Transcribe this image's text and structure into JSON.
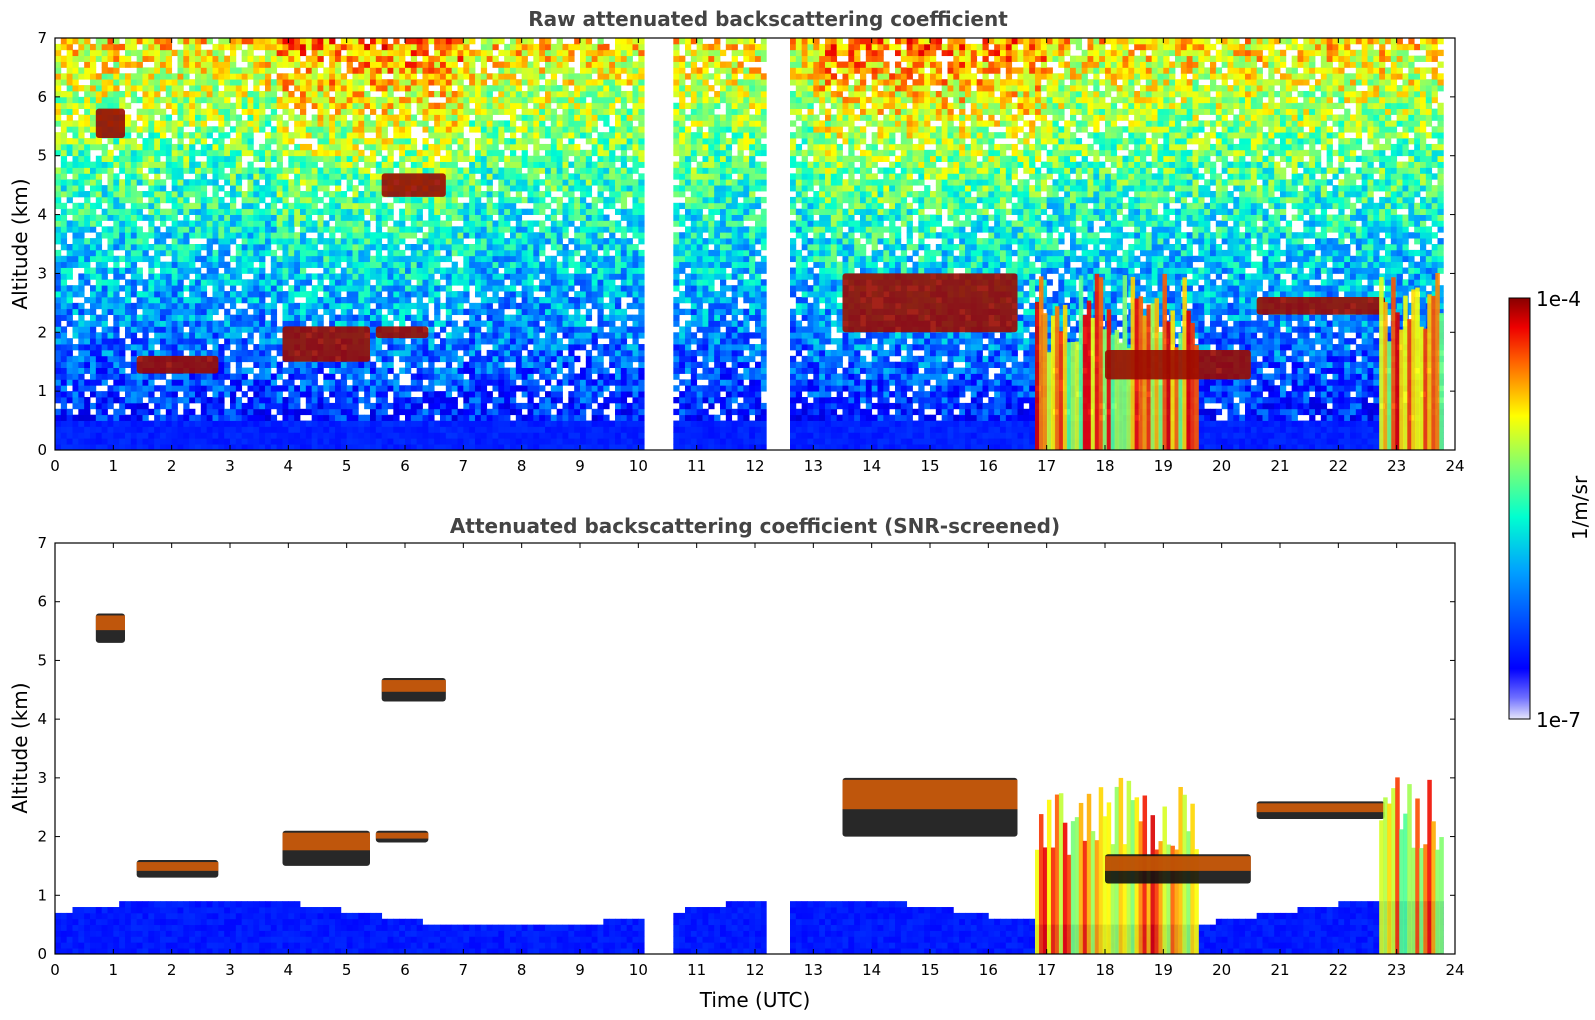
{
  "chart_data": [
    {
      "type": "heatmap",
      "title": "Raw attenuated backscattering coefficient",
      "xlabel": "",
      "ylabel": "Altitude (km)",
      "xlim": [
        0,
        24
      ],
      "ylim": [
        0,
        7
      ],
      "xticks": [
        "0",
        "1",
        "2",
        "3",
        "4",
        "5",
        "6",
        "7",
        "8",
        "9",
        "10",
        "11",
        "12",
        "13",
        "14",
        "15",
        "16",
        "17",
        "18",
        "19",
        "20",
        "21",
        "22",
        "23",
        "24"
      ],
      "yticks": [
        "0",
        "1",
        "2",
        "3",
        "4",
        "5",
        "6",
        "7"
      ],
      "data_gaps_utc": [
        [
          10.15,
          10.55
        ],
        [
          12.2,
          12.55
        ]
      ],
      "features": [
        {
          "x": [
            1.4,
            2.8
          ],
          "y": [
            1.3,
            1.6
          ],
          "kind": "cloud layer"
        },
        {
          "x": [
            3.9,
            5.4
          ],
          "y": [
            1.5,
            2.1
          ],
          "kind": "cloud layer"
        },
        {
          "x": [
            5.5,
            6.4
          ],
          "y": [
            1.9,
            2.1
          ],
          "kind": "cloud layer"
        },
        {
          "x": [
            5.6,
            6.7
          ],
          "y": [
            4.3,
            4.7
          ],
          "kind": "cloud layer"
        },
        {
          "x": [
            0.7,
            1.2
          ],
          "y": [
            5.3,
            5.8
          ],
          "kind": "cloud layer"
        },
        {
          "x": [
            13.5,
            16.5
          ],
          "y": [
            2.0,
            3.0
          ],
          "kind": "cloud layer"
        },
        {
          "x": [
            16.8,
            19.6
          ],
          "y": [
            0,
            3.0
          ],
          "kind": "precipitation"
        },
        {
          "x": [
            18.0,
            20.5
          ],
          "y": [
            1.2,
            1.7
          ],
          "kind": "cloud layer"
        },
        {
          "x": [
            20.6,
            22.8
          ],
          "y": [
            2.3,
            2.6
          ],
          "kind": "cloud layer"
        },
        {
          "x": [
            22.7,
            23.8
          ],
          "y": [
            0,
            3.2
          ],
          "kind": "precipitation"
        }
      ]
    },
    {
      "type": "heatmap",
      "title": "Attenuated backscattering coefficient (SNR-screened)",
      "xlabel": "Time (UTC)",
      "ylabel": "Altitude (km)",
      "xlim": [
        0,
        24
      ],
      "ylim": [
        0,
        7
      ],
      "xticks": [
        "0",
        "1",
        "2",
        "3",
        "4",
        "5",
        "6",
        "7",
        "8",
        "9",
        "10",
        "11",
        "12",
        "13",
        "14",
        "15",
        "16",
        "17",
        "18",
        "19",
        "20",
        "21",
        "22",
        "23",
        "24"
      ],
      "yticks": [
        "0",
        "1",
        "2",
        "3",
        "4",
        "5",
        "6",
        "7"
      ],
      "data_gaps_utc": [
        [
          10.15,
          10.55
        ],
        [
          12.2,
          12.55
        ]
      ]
    }
  ],
  "colorbar": {
    "label": "1/m/sr",
    "max_label": "1e-4",
    "min_label": "1e-7",
    "scale": "log",
    "range": [
      1e-07,
      0.0001
    ],
    "colormap": "jet"
  }
}
